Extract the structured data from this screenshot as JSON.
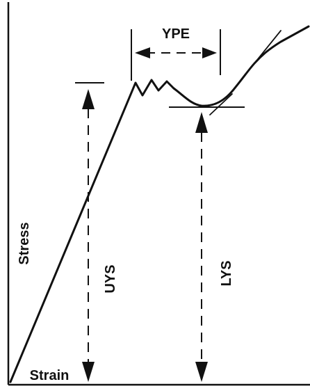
{
  "diagram": {
    "labels": {
      "ype": "YPE",
      "uys": "UYS",
      "lys": "LYS",
      "stress": "Stress",
      "strain": "Strain"
    },
    "colors": {
      "ink": "#111111",
      "background": "#ffffff"
    }
  }
}
